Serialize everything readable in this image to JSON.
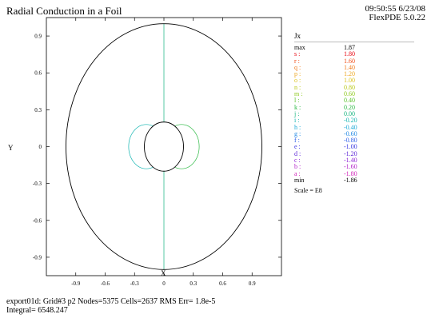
{
  "header": {
    "title": "Radial Conduction in a Foil",
    "time_date": "09:50:55 6/23/08",
    "version": "FlexPDE 5.0.22"
  },
  "chart_data": {
    "type": "contour",
    "xlabel": "X",
    "ylabel": "Y",
    "xlim": [
      -1.2,
      1.2
    ],
    "ylim": [
      -1.05,
      1.05
    ],
    "xticks": [
      "-0.9",
      "-0.6",
      "-0.3",
      "0",
      "0.3",
      "0.6",
      "0.9"
    ],
    "yticks": [
      "0.9",
      "0.6",
      "0.3",
      "0",
      "-0.3",
      "-0.6",
      "-0.9"
    ],
    "outer_radius": 1.0,
    "inner_radius": 0.2,
    "legend_title": "Jx",
    "levels": [
      {
        "key": "max",
        "value": "1.87",
        "color": "#000000"
      },
      {
        "key": "s :",
        "value": "1.80",
        "color": "#e8000b"
      },
      {
        "key": "r :",
        "value": "1.60",
        "color": "#f04a14"
      },
      {
        "key": "q :",
        "value": "1.40",
        "color": "#f07a1c"
      },
      {
        "key": "p :",
        "value": "1.20",
        "color": "#eea61e"
      },
      {
        "key": "o :",
        "value": "1.00",
        "color": "#dcc21c"
      },
      {
        "key": "n :",
        "value": "0.80",
        "color": "#b8c812"
      },
      {
        "key": "m :",
        "value": "0.60",
        "color": "#8cc81a"
      },
      {
        "key": "l :",
        "value": "0.40",
        "color": "#58c228"
      },
      {
        "key": "k :",
        "value": "0.20",
        "color": "#28b840"
      },
      {
        "key": "j :",
        "value": "0.00",
        "color": "#14b47e"
      },
      {
        "key": "i :",
        "value": "-0.20",
        "color": "#10b4b0"
      },
      {
        "key": "h :",
        "value": "-0.40",
        "color": "#18a8d6"
      },
      {
        "key": "g :",
        "value": "-0.60",
        "color": "#2088e4"
      },
      {
        "key": "f :",
        "value": "-0.80",
        "color": "#2a5ce8"
      },
      {
        "key": "e :",
        "value": "-1.00",
        "color": "#3432e0"
      },
      {
        "key": "d :",
        "value": "-1.20",
        "color": "#5a22d6"
      },
      {
        "key": "c :",
        "value": "-1.40",
        "color": "#8a1cd4"
      },
      {
        "key": "b :",
        "value": "-1.60",
        "color": "#b01cc8"
      },
      {
        "key": "a :",
        "value": "-1.80",
        "color": "#d020b8"
      },
      {
        "key": "min",
        "value": "-1.86",
        "color": "#000000"
      }
    ],
    "scale_label": "Scale = E8",
    "contour_letters": [
      "a",
      "b",
      "c",
      "d",
      "e",
      "f",
      "g",
      "h",
      "i",
      "k",
      "l",
      "m",
      "n",
      "o",
      "p",
      "q",
      "r",
      "s"
    ]
  },
  "footer": {
    "line1": "export01d:  Grid#3  p2  Nodes=5375 Cells=2637 RMS Err= 1.8e-5",
    "line2": "Integral=  6548.247"
  }
}
